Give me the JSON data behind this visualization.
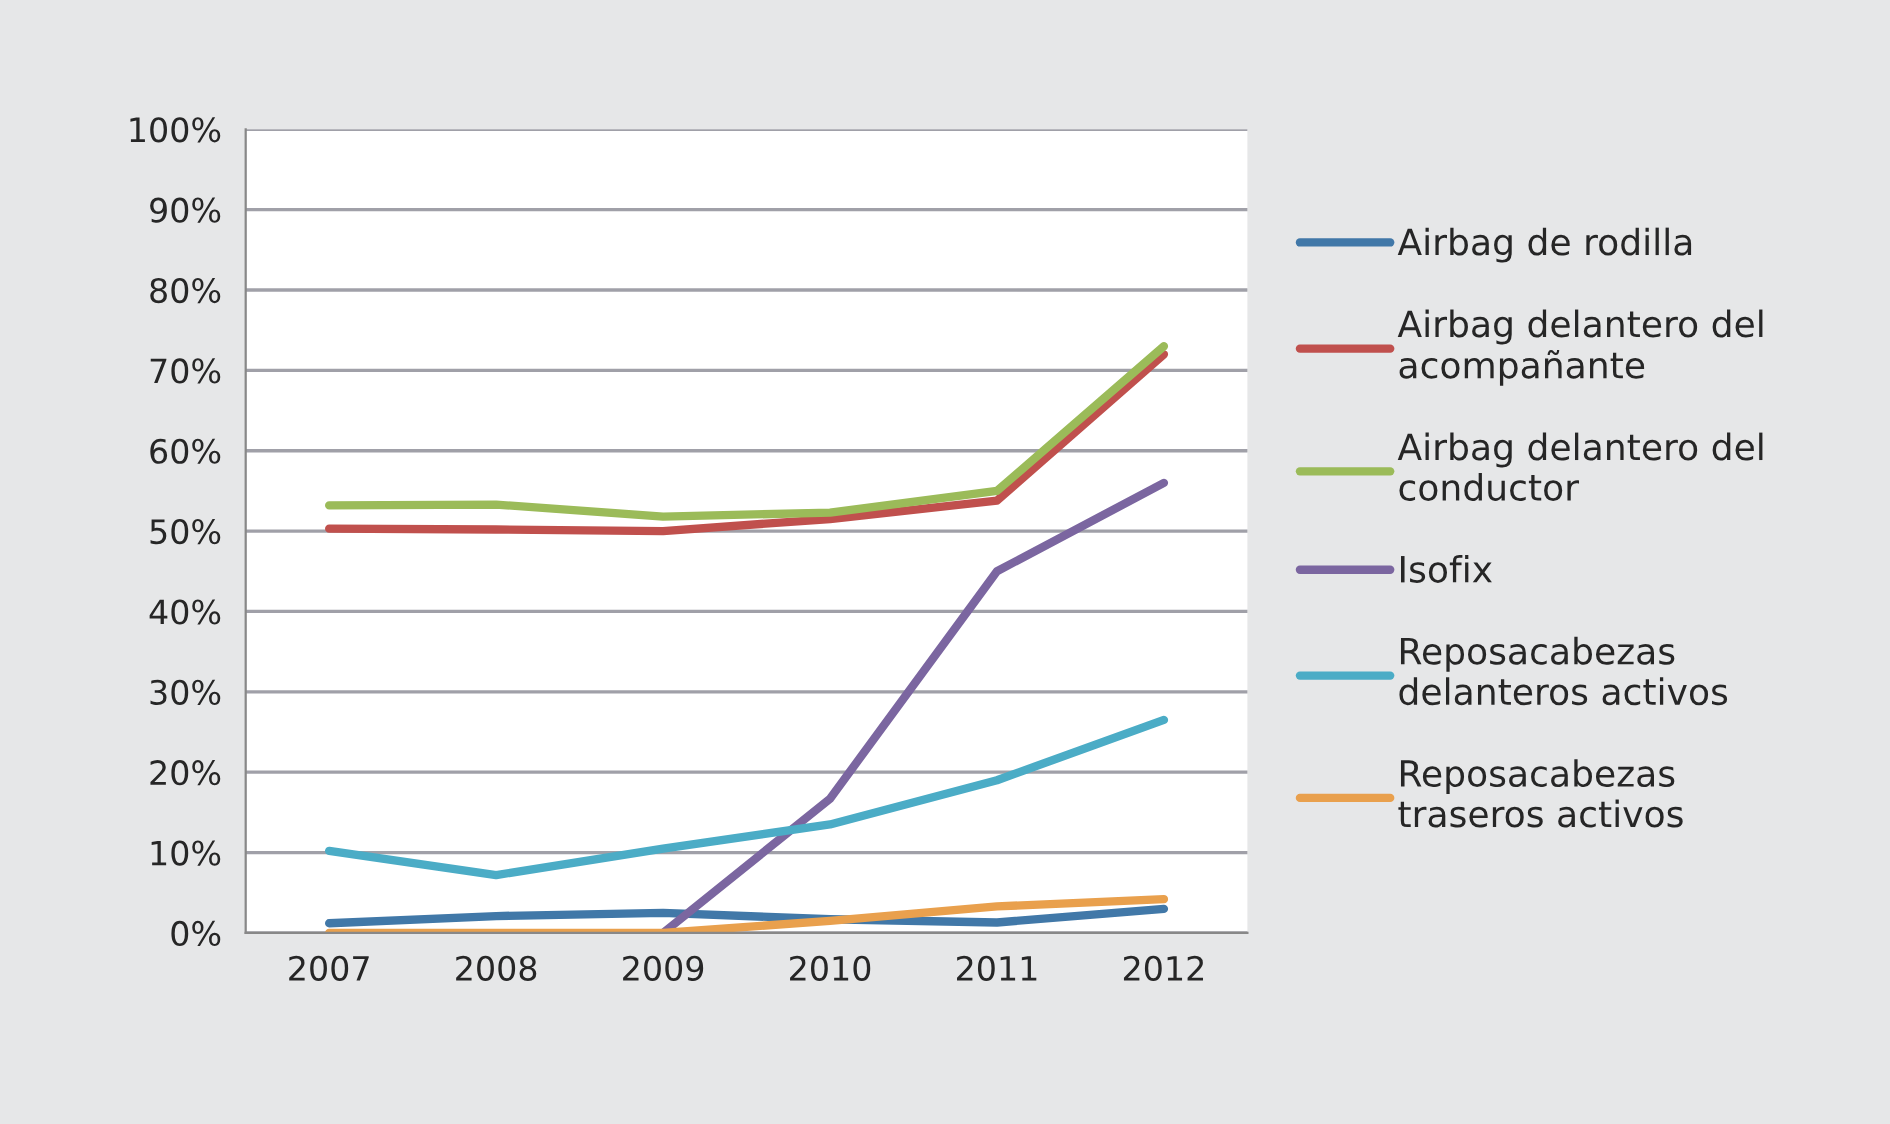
{
  "chart_data": {
    "type": "line",
    "categories": [
      "2007",
      "2008",
      "2009",
      "2010",
      "2011",
      "2012"
    ],
    "series": [
      {
        "name": "Airbag de rodilla",
        "color": "#4178a8",
        "values": [
          1.2,
          2.1,
          2.5,
          1.7,
          1.3,
          3.0
        ]
      },
      {
        "name": "Airbag delantero del\nacompañante",
        "color": "#c0504d",
        "values": [
          50.3,
          50.2,
          50.0,
          51.5,
          53.8,
          72.0
        ]
      },
      {
        "name": "Airbag delantero del\nconductor",
        "color": "#9bbb59",
        "values": [
          53.2,
          53.3,
          51.8,
          52.3,
          55.0,
          73.0
        ]
      },
      {
        "name": "Isofix",
        "color": "#7b66a0",
        "values": [
          null,
          null,
          0,
          16.7,
          45.0,
          56.0
        ]
      },
      {
        "name": "Reposacabezas\ndelanteros activos",
        "color": "#4bacc6",
        "values": [
          10.2,
          7.2,
          10.5,
          13.5,
          19.0,
          26.5
        ]
      },
      {
        "name": "Reposacabezas\ntraseros activos",
        "color": "#e9a04d",
        "values": [
          0,
          0,
          0,
          1.5,
          3.3,
          4.2
        ]
      }
    ],
    "ylim": [
      0,
      100
    ],
    "yticks": [
      {
        "value": 0,
        "label": "0%"
      },
      {
        "value": 10,
        "label": "10%"
      },
      {
        "value": 20,
        "label": "20%"
      },
      {
        "value": 30,
        "label": "30%"
      },
      {
        "value": 40,
        "label": "40%"
      },
      {
        "value": 50,
        "label": "50%"
      },
      {
        "value": 60,
        "label": "60%"
      },
      {
        "value": 70,
        "label": "70%"
      },
      {
        "value": 80,
        "label": "80%"
      },
      {
        "value": 90,
        "label": "90%"
      },
      {
        "value": 100,
        "label": "100%"
      }
    ],
    "grid": "y",
    "legend": "right",
    "marker": "none",
    "line_style": "solid"
  }
}
